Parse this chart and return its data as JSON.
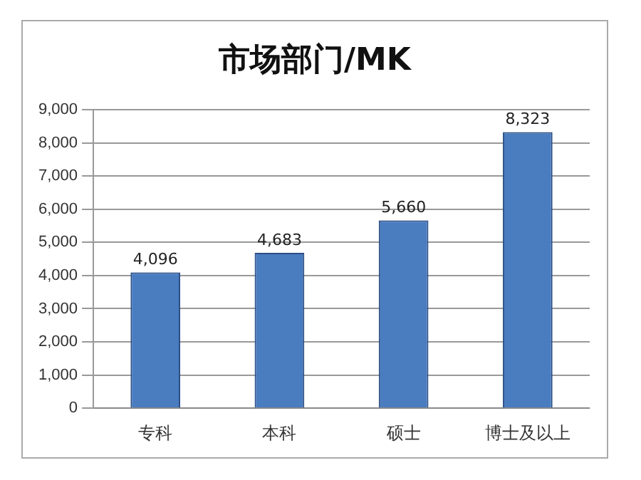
{
  "chart_data": {
    "type": "bar",
    "title": "市场部门/MK",
    "categories": [
      "专科",
      "本科",
      "硕士",
      "博士及以上"
    ],
    "values": [
      4096,
      4683,
      5660,
      8323
    ],
    "color": "#4a7cc0",
    "ylim": [
      0,
      9000
    ],
    "yticks": [
      {
        "value": 0,
        "label": "0"
      },
      {
        "value": 1000,
        "label": "1,000"
      },
      {
        "value": 2000,
        "label": "2,000"
      },
      {
        "value": 3000,
        "label": "3,000"
      },
      {
        "value": 4000,
        "label": "4,000"
      },
      {
        "value": 5000,
        "label": "5,000"
      },
      {
        "value": 6000,
        "label": "6,000"
      },
      {
        "value": 7000,
        "label": "7,000"
      },
      {
        "value": 8000,
        "label": "8,000"
      },
      {
        "value": 9000,
        "label": "9,000"
      }
    ],
    "value_labels": [
      "4,096",
      "4,683",
      "5,660",
      "8,323"
    ],
    "grid": "y",
    "legend": false
  }
}
